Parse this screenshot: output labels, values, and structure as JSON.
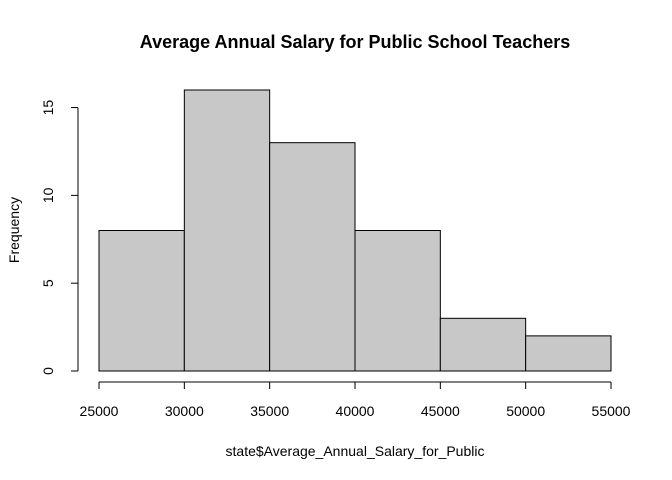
{
  "chart_data": {
    "type": "bar",
    "title": "Average Annual Salary for Public School Teachers",
    "xlabel": "state$Average_Annual_Salary_for_Public",
    "ylabel": "Frequency",
    "bins": [
      {
        "from": 25000,
        "to": 30000,
        "count": 8
      },
      {
        "from": 30000,
        "to": 35000,
        "count": 16
      },
      {
        "from": 35000,
        "to": 40000,
        "count": 13
      },
      {
        "from": 40000,
        "to": 45000,
        "count": 8
      },
      {
        "from": 45000,
        "to": 50000,
        "count": 3
      },
      {
        "from": 50000,
        "to": 55000,
        "count": 2
      }
    ],
    "xlim": [
      25000,
      55000
    ],
    "ylim": [
      0,
      16
    ],
    "xticks": [
      "25000",
      "30000",
      "35000",
      "40000",
      "45000",
      "50000",
      "55000"
    ],
    "yticks": [
      "0",
      "5",
      "10",
      "15"
    ],
    "grid": false,
    "bar_color": "#c8c8c8",
    "edge_color": "#000000"
  }
}
